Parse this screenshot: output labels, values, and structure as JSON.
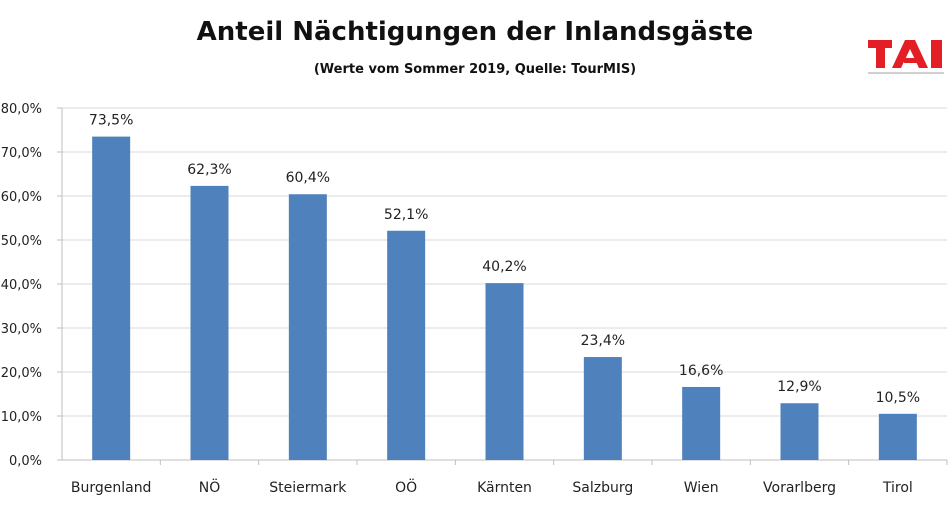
{
  "chart_data": {
    "type": "bar",
    "title": "Anteil Nächtigungen der Inlandsgäste",
    "subtitle": "(Werte vom Sommer 2019, Quelle: TourMIS)",
    "categories": [
      "Burgenland",
      "NÖ",
      "Steiermark",
      "OÖ",
      "Kärnten",
      "Salzburg",
      "Wien",
      "Vorarlberg",
      "Tirol"
    ],
    "values": [
      73.5,
      62.3,
      60.4,
      52.1,
      40.2,
      23.4,
      16.6,
      12.9,
      10.5
    ],
    "data_labels": [
      "73,5%",
      "62,3%",
      "60,4%",
      "52,1%",
      "40,2%",
      "23,4%",
      "16,6%",
      "12,9%",
      "10,5%"
    ],
    "y_ticks": [
      0,
      10,
      20,
      30,
      40,
      50,
      60,
      70,
      80
    ],
    "y_tick_labels": [
      "0,0%",
      "10,0%",
      "20,0%",
      "30,0%",
      "40,0%",
      "50,0%",
      "60,0%",
      "70,0%",
      "80,0%"
    ],
    "ylim": [
      0,
      80
    ],
    "xlabel": "",
    "ylabel": "",
    "grid": true,
    "bar_color": "#4f81bd",
    "grid_color": "#d9d9d9"
  },
  "logo": {
    "text": "TAI",
    "color": "#e31e24"
  }
}
